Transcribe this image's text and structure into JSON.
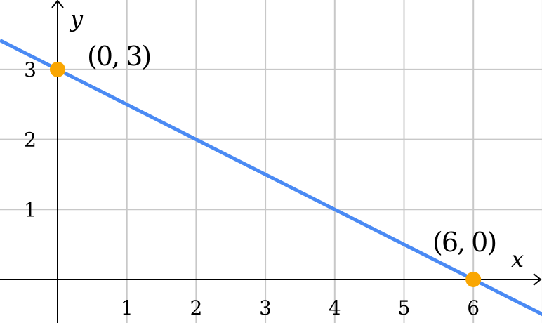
{
  "chart_data": {
    "type": "line",
    "xlabel": "x",
    "ylabel": "y",
    "xlim": [
      -0.83,
      7
    ],
    "ylim": [
      -0.62,
      4
    ],
    "grid": true,
    "x_ticks": [
      "1",
      "2",
      "3",
      "4",
      "5",
      "6"
    ],
    "y_ticks": [
      "1",
      "2",
      "3"
    ],
    "series": [
      {
        "equation": "y = 3 - x/2",
        "x": [
          -0.83,
          7
        ],
        "y": [
          3.415,
          -0.5
        ],
        "color": "#4a8af4"
      }
    ],
    "points": [
      {
        "x": 0,
        "y": 3,
        "label": "(0, 3)",
        "color": "#f9a602"
      },
      {
        "x": 6,
        "y": 0,
        "label": "(6, 0)",
        "color": "#f9a602"
      }
    ]
  }
}
